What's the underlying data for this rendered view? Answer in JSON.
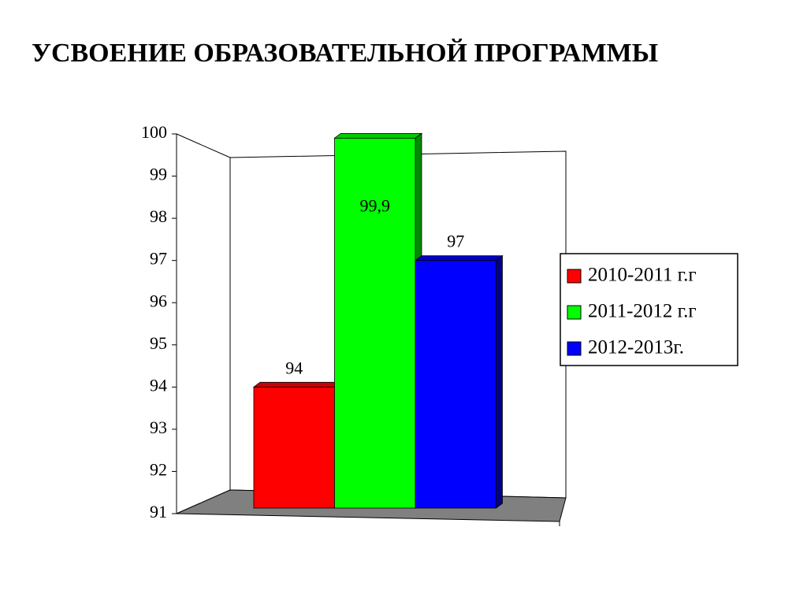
{
  "chart_data": {
    "type": "bar",
    "title": "УСВОЕНИЕ ОБРАЗОВАТЕЛЬНОЙ ПРОГРАММЫ",
    "categories": [
      null
    ],
    "series": [
      {
        "name": "2010-2011 г.г",
        "color": "#ff0000",
        "values": [
          94
        ]
      },
      {
        "name": "2011-2012 г.г",
        "color": "#00ff00",
        "values": [
          99.9
        ],
        "value_labels": [
          "99,9"
        ]
      },
      {
        "name": "2012-2013г.",
        "color": "#0000ff",
        "values": [
          97
        ]
      }
    ],
    "ylim": [
      91,
      100
    ],
    "yticks": [
      91,
      92,
      93,
      94,
      95,
      96,
      97,
      98,
      99,
      100
    ],
    "grid": false,
    "legend": "right"
  }
}
